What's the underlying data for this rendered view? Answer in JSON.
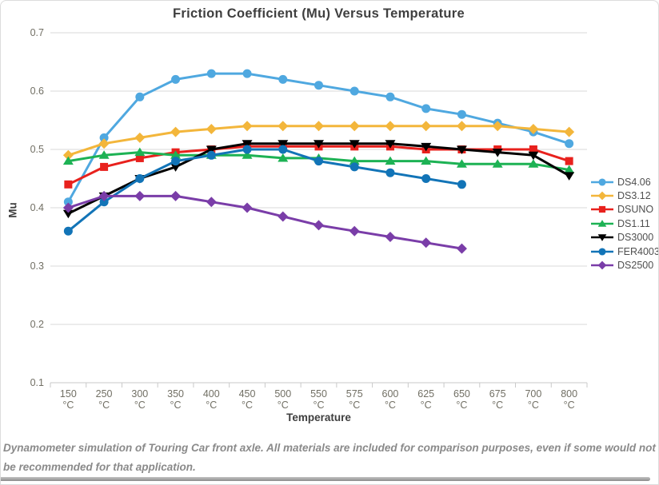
{
  "page": {
    "footer_text": "Dynamometer simulation of Touring Car front axle. All materials are included for comparison purposes, even if some would not be recommended for that application."
  },
  "chart_data": {
    "type": "line",
    "title": "Friction Coefficient (Mu) Versus Temperature",
    "xlabel": "Temperature",
    "ylabel": "Mu",
    "x_unit": "°C",
    "categories": [
      "150",
      "250",
      "300",
      "350",
      "400",
      "450",
      "500",
      "550",
      "575",
      "600",
      "625",
      "650",
      "675",
      "700",
      "800"
    ],
    "yticks": [
      "0.7",
      "0.6",
      "0.5",
      "0.4",
      "0.3",
      "0.2",
      "0.1"
    ],
    "ylim": [
      0.1,
      0.7
    ],
    "grid": true,
    "legend_position": "right",
    "colors": {
      "grid": "#d9d9d9",
      "axis": "#c9c9c9",
      "tick_text": "#716f64",
      "title_text": "#3f3f3f",
      "footer_text": "#8a8a8a"
    },
    "series": [
      {
        "name": "DS4.06",
        "color": "#4fa8e0",
        "marker": "circle",
        "values": [
          0.41,
          0.52,
          0.59,
          0.62,
          0.63,
          0.63,
          0.62,
          0.61,
          0.6,
          0.59,
          0.57,
          0.56,
          0.545,
          0.53,
          0.51
        ]
      },
      {
        "name": "DS3.12",
        "color": "#f3b63b",
        "marker": "diamond",
        "values": [
          0.49,
          0.51,
          0.52,
          0.53,
          0.535,
          0.54,
          0.54,
          0.54,
          0.54,
          0.54,
          0.54,
          0.54,
          0.54,
          0.535,
          0.53
        ]
      },
      {
        "name": "DSUNO",
        "color": "#e8211d",
        "marker": "square",
        "values": [
          0.44,
          0.47,
          0.485,
          0.495,
          0.5,
          0.505,
          0.505,
          0.505,
          0.505,
          0.505,
          0.5,
          0.5,
          0.5,
          0.5,
          0.48
        ]
      },
      {
        "name": "DS1.11",
        "color": "#1db254",
        "marker": "triangle-up",
        "values": [
          0.48,
          0.49,
          0.495,
          0.49,
          0.49,
          0.49,
          0.485,
          0.485,
          0.48,
          0.48,
          0.48,
          0.475,
          0.475,
          0.475,
          0.465
        ]
      },
      {
        "name": "DS3000",
        "color": "#000000",
        "marker": "triangle-down",
        "values": [
          0.39,
          0.42,
          0.45,
          0.47,
          0.5,
          0.51,
          0.51,
          0.51,
          0.51,
          0.51,
          0.505,
          0.5,
          0.495,
          0.49,
          0.455
        ]
      },
      {
        "name": "FER4003",
        "color": "#1274b7",
        "marker": "circle",
        "values": [
          0.36,
          0.41,
          0.45,
          0.48,
          0.49,
          0.5,
          0.5,
          0.48,
          0.47,
          0.46,
          0.45,
          0.44,
          null,
          null,
          null
        ]
      },
      {
        "name": "DS2500",
        "color": "#7a3da8",
        "marker": "diamond",
        "values": [
          0.4,
          0.42,
          0.42,
          0.42,
          0.41,
          0.4,
          0.385,
          0.37,
          0.36,
          0.35,
          0.34,
          0.33,
          null,
          null,
          null
        ]
      }
    ]
  }
}
